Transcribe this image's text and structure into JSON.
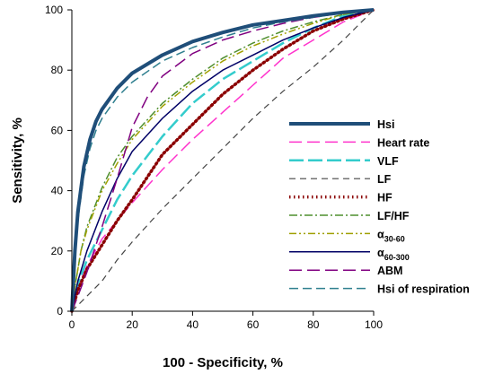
{
  "chart_data": {
    "type": "line",
    "xlabel": "100 - Specificity, %",
    "ylabel": "Sensitivity, %",
    "xlim": [
      0,
      100
    ],
    "ylim": [
      0,
      100
    ],
    "xticks": [
      0,
      20,
      40,
      60,
      80,
      100
    ],
    "yticks": [
      0,
      20,
      40,
      60,
      80,
      100
    ],
    "legend_position": "right",
    "grid": false,
    "series": [
      {
        "name": "Hsi",
        "name_sub": "",
        "color": "#1f4e79",
        "dash": "",
        "width": 4,
        "x": [
          0,
          1,
          2,
          4,
          6,
          8,
          10,
          15,
          20,
          30,
          40,
          50,
          60,
          70,
          80,
          90,
          100
        ],
        "y": [
          0,
          20,
          33,
          48,
          57,
          63,
          67,
          74,
          79,
          85,
          89.5,
          92.5,
          95,
          96.5,
          98,
          99.2,
          100
        ]
      },
      {
        "name": "Heart rate",
        "name_sub": "",
        "color": "#ff33cc",
        "dash": "14,6",
        "width": 1.5,
        "x": [
          0,
          2,
          5,
          10,
          15,
          20,
          30,
          40,
          50,
          60,
          70,
          80,
          90,
          100
        ],
        "y": [
          0,
          8,
          15,
          24,
          30,
          36,
          47,
          57,
          66,
          75,
          84,
          90,
          96,
          100
        ]
      },
      {
        "name": "VLF",
        "name_sub": "",
        "color": "#33cccc",
        "dash": "16,5",
        "width": 2.5,
        "x": [
          0,
          2,
          5,
          10,
          15,
          20,
          30,
          40,
          50,
          60,
          70,
          80,
          90,
          100
        ],
        "y": [
          0,
          9,
          17,
          27,
          37,
          45,
          58,
          69,
          77,
          83,
          89,
          94,
          98,
          100
        ]
      },
      {
        "name": "LF",
        "name_sub": "",
        "color": "#444444",
        "dash": "7,5",
        "width": 1.2,
        "x": [
          0,
          5,
          10,
          15,
          20,
          30,
          40,
          50,
          60,
          70,
          80,
          90,
          100
        ],
        "y": [
          0,
          5,
          10,
          17,
          23,
          34,
          44,
          54,
          64,
          73,
          81,
          90,
          100
        ]
      },
      {
        "name": "HF",
        "name_sub": "",
        "color": "#8b0000",
        "dash": "1.5,3.5",
        "width": 3.5,
        "x": [
          0,
          2,
          5,
          10,
          15,
          20,
          30,
          40,
          50,
          60,
          70,
          80,
          90,
          100
        ],
        "y": [
          0,
          7,
          14,
          22,
          30,
          37,
          52,
          62,
          72,
          80,
          87,
          93,
          97,
          100
        ]
      },
      {
        "name": "LF/HF",
        "name_sub": "",
        "color": "#4f8f2f",
        "dash": "9,3,2,3",
        "width": 1.5,
        "x": [
          0,
          1,
          3,
          5,
          10,
          15,
          20,
          30,
          40,
          50,
          60,
          70,
          80,
          90,
          100
        ],
        "y": [
          0,
          8,
          20,
          28,
          41,
          51,
          58,
          69,
          77,
          84,
          89,
          93,
          96,
          98.5,
          100
        ]
      },
      {
        "name": "α",
        "name_sub": "30-60",
        "color": "#a0a000",
        "dash": "8,3,2,3,2,3",
        "width": 1.5,
        "x": [
          0,
          1,
          3,
          5,
          10,
          15,
          20,
          30,
          40,
          50,
          60,
          70,
          80,
          90,
          100
        ],
        "y": [
          0,
          8,
          20,
          27,
          40,
          49,
          57,
          68,
          76,
          83,
          88,
          92,
          95.5,
          98.5,
          100
        ]
      },
      {
        "name": "α",
        "name_sub": "60-300",
        "color": "#000066",
        "dash": "",
        "width": 1.5,
        "x": [
          0,
          2,
          5,
          10,
          15,
          20,
          30,
          40,
          50,
          60,
          70,
          80,
          90,
          100
        ],
        "y": [
          0,
          10,
          20,
          33,
          44,
          53,
          64,
          73,
          80,
          85,
          90,
          94,
          97.5,
          100
        ]
      },
      {
        "name": "ABM",
        "name_sub": "",
        "color": "#800080",
        "dash": "14,6",
        "width": 1.5,
        "x": [
          0,
          2,
          5,
          10,
          15,
          20,
          25,
          30,
          40,
          50,
          60,
          70,
          80,
          90,
          100
        ],
        "y": [
          0,
          5,
          13,
          28,
          44,
          61,
          71,
          78,
          85.5,
          90,
          93,
          95.5,
          97.5,
          99,
          100
        ]
      },
      {
        "name": "Hsi of respiration",
        "name_sub": "",
        "color": "#2f7f8f",
        "dash": "10,5",
        "width": 1.5,
        "x": [
          0,
          1,
          2,
          4,
          6,
          8,
          10,
          15,
          20,
          30,
          40,
          50,
          60,
          70,
          80,
          90,
          100
        ],
        "y": [
          0,
          18,
          30,
          45,
          54,
          60,
          64,
          71,
          76,
          83,
          87.5,
          91,
          94,
          96,
          97.5,
          99,
          100
        ]
      }
    ]
  }
}
